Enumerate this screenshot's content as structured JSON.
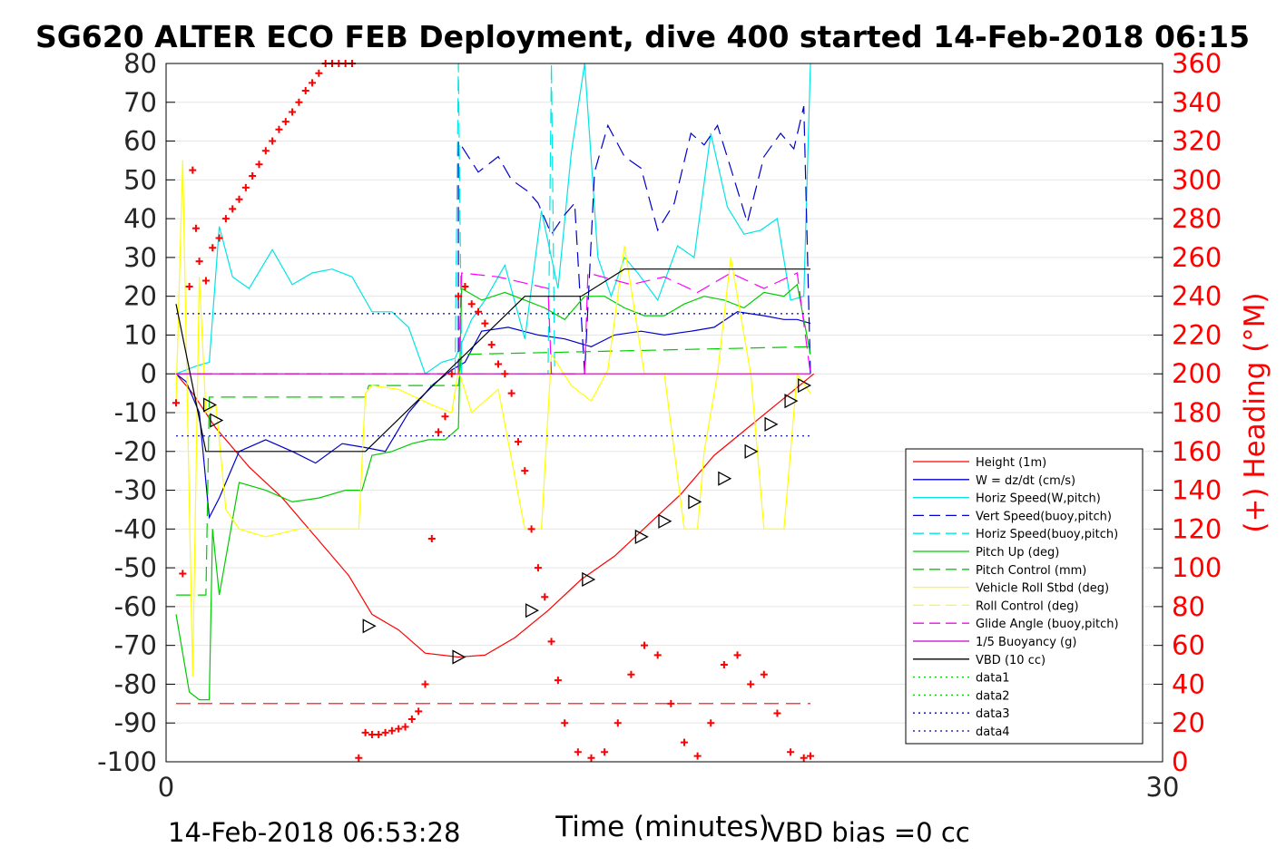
{
  "chart_data": {
    "type": "line",
    "title": "SG620 ALTER ECO FEB Deployment, dive 400 started 14-Feb-2018 06:15",
    "xlabel": "Time (minutes)",
    "ylabel": "",
    "ylabel_right": "(+) Heading (°M)",
    "xlim": [
      0,
      30
    ],
    "ylim": [
      -100,
      80
    ],
    "ylim_right": [
      0,
      360
    ],
    "x_ticks": [
      "0",
      "30"
    ],
    "y_ticks": [
      "80",
      "70",
      "60",
      "50",
      "40",
      "30",
      "20",
      "10",
      "0",
      "-10",
      "-20",
      "-30",
      "-40",
      "-50",
      "-60",
      "-70",
      "-80",
      "-90",
      "-100"
    ],
    "y_ticks_right": [
      "360",
      "340",
      "320",
      "300",
      "280",
      "260",
      "240",
      "220",
      "200",
      "180",
      "160",
      "140",
      "120",
      "100",
      "80",
      "60",
      "40",
      "20",
      "0"
    ],
    "footer_left": "14-Feb-2018 06:53:28",
    "footer_right": "VBD bias =0 cc",
    "legend": [
      {
        "label": "Height (1m)",
        "color": "#ff0000",
        "dash": "solid"
      },
      {
        "label": "W = dz/dt (cm/s)",
        "color": "#0000cc",
        "dash": "solid"
      },
      {
        "label": "Horiz Speed(W,pitch)",
        "color": "#00e5e5",
        "dash": "solid"
      },
      {
        "label": "Vert Speed(buoy,pitch)",
        "color": "#0000cc",
        "dash": "dashed"
      },
      {
        "label": "Horiz Speed(buoy,pitch)",
        "color": "#00e5e5",
        "dash": "dashed"
      },
      {
        "label": "Pitch Up (deg)",
        "color": "#00cc00",
        "dash": "solid"
      },
      {
        "label": "Pitch Control (mm)",
        "color": "#00cc00",
        "dash": "dashed"
      },
      {
        "label": "Vehicle Roll Stbd (deg)",
        "color": "#ffff00",
        "dash": "solid"
      },
      {
        "label": "Roll Control (deg)",
        "color": "#ffff00",
        "dash": "dashed"
      },
      {
        "label": "Glide Angle (buoy,pitch)",
        "color": "#ff00ff",
        "dash": "dashed"
      },
      {
        "label": "1/5 Buoyancy (g)",
        "color": "#cc00cc",
        "dash": "solid"
      },
      {
        "label": "VBD (10 cc)",
        "color": "#000000",
        "dash": "solid"
      },
      {
        "label": "data1",
        "color": "#00cc00",
        "dash": "dotted"
      },
      {
        "label": "data2",
        "color": "#00cc00",
        "dash": "dotted"
      },
      {
        "label": "data3",
        "color": "#0000aa",
        "dash": "dotted"
      },
      {
        "label": "data4",
        "color": "#0000aa",
        "dash": "dotted"
      }
    ],
    "series": [
      {
        "name": "Height (1m)",
        "color": "#ff0000",
        "dash": "solid",
        "x": [
          0.3,
          0.8,
          1.5,
          2.5,
          3.5,
          4.5,
          5.5,
          6.2,
          7.0,
          7.8,
          8.8,
          9.6,
          10.5,
          11.5,
          12.5,
          13.5,
          14.5,
          15.5,
          16.5,
          17.5,
          18.5,
          19.5
        ],
        "y": [
          0,
          -5,
          -14,
          -24,
          -32,
          -42,
          -52,
          -62,
          -66,
          -72,
          -73,
          -72.5,
          -68,
          -61,
          -53,
          -47,
          -39,
          -31,
          -21,
          -14,
          -7,
          0
        ]
      },
      {
        "name": "W = dz/dt (cm/s)",
        "color": "#0000cc",
        "dash": "solid",
        "x": [
          0.3,
          0.6,
          1.0,
          1.3,
          1.6,
          2.2,
          3.0,
          3.8,
          4.5,
          5.3,
          6.0,
          6.6,
          7.3,
          8.0,
          8.6,
          9.0,
          9.5,
          10.3,
          11.2,
          12.0,
          12.8,
          13.5,
          14.3,
          15.0,
          15.8,
          16.5,
          17.2,
          18.0,
          18.6,
          19.0,
          19.4
        ],
        "y": [
          0,
          -2,
          -10,
          -37,
          -32,
          -20,
          -17,
          -20,
          -23,
          -18,
          -19,
          -20,
          -10,
          -3,
          1,
          3,
          11,
          12,
          10,
          9,
          7,
          10,
          11,
          10,
          11,
          12,
          16,
          15,
          14,
          14,
          13
        ]
      },
      {
        "name": "Horiz Speed(W,pitch)",
        "color": "#00e5e5",
        "dash": "solid",
        "x": [
          0.3,
          0.9,
          1.3,
          1.6,
          2.0,
          2.5,
          3.2,
          3.8,
          4.4,
          5.0,
          5.6,
          6.2,
          6.8,
          7.3,
          7.8,
          8.3,
          8.7,
          9.2,
          9.6,
          10.2,
          10.8,
          11.3,
          11.8,
          12.2,
          12.6,
          13.0,
          13.4,
          13.8,
          14.2,
          14.8,
          15.4,
          15.9,
          16.4,
          16.9,
          17.4,
          17.9,
          18.4,
          18.8,
          19.2,
          19.4
        ],
        "y": [
          0,
          2,
          3,
          38,
          25,
          22,
          32,
          23,
          26,
          27,
          25,
          16,
          16,
          12,
          0,
          3,
          4,
          14,
          19,
          28,
          9,
          42,
          22,
          57,
          80,
          30,
          20,
          30,
          26,
          19,
          33,
          30,
          62,
          43,
          36,
          37,
          40,
          19,
          20,
          80
        ]
      },
      {
        "name": "Vert Speed(buoy,pitch)",
        "color": "#0000cc",
        "dash": "dashed",
        "x": [
          8.8,
          8.8,
          9.4,
          10.0,
          10.4,
          10.9,
          11.2,
          11.6,
          12.0,
          12.3,
          12.6,
          12.9,
          13.3,
          13.8,
          14.3,
          14.8,
          15.3,
          15.8,
          16.2,
          16.6,
          17.0,
          17.5,
          18.0,
          18.5,
          18.9,
          19.2,
          19.4
        ],
        "y": [
          0,
          60,
          52,
          56,
          50,
          47,
          44,
          36,
          41,
          44,
          0,
          52,
          64,
          56,
          53,
          37,
          44,
          62,
          59,
          64,
          53,
          39,
          56,
          62,
          58,
          69,
          0
        ]
      },
      {
        "name": "Horiz Speed(buoy,pitch)",
        "color": "#00e5e5",
        "dash": "dashed",
        "x": [
          8.7,
          8.8,
          8.8,
          8.9,
          11.5,
          11.6,
          11.6,
          11.7
        ],
        "y": [
          0,
          80,
          80,
          0,
          0,
          80,
          80,
          0
        ]
      },
      {
        "name": "Pitch Up (deg)",
        "color": "#00cc00",
        "dash": "solid",
        "x": [
          0.3,
          0.7,
          1.0,
          1.3,
          1.4,
          1.6,
          2.2,
          3.0,
          3.8,
          4.6,
          5.4,
          5.9,
          6.2,
          6.8,
          7.4,
          7.9,
          8.4,
          8.8,
          8.9,
          9.5,
          10.2,
          10.8,
          11.4,
          12.0,
          12.6,
          13.2,
          13.8,
          14.4,
          15.0,
          15.6,
          16.2,
          16.8,
          17.4,
          18.0,
          18.6,
          19.0,
          19.4
        ],
        "y": [
          -62,
          -82,
          -84,
          -84,
          -40,
          -57,
          -28,
          -30,
          -33,
          -32,
          -30,
          -30,
          -21,
          -20,
          -18,
          -17,
          -17,
          -14,
          22,
          19,
          21,
          19,
          17,
          14,
          20,
          20,
          17,
          15,
          15,
          18,
          20,
          19,
          17,
          21,
          20,
          23,
          5
        ]
      },
      {
        "name": "Pitch Control (mm)",
        "color": "#00cc00",
        "dash": "dashed",
        "x": [
          0.3,
          1.2,
          1.3,
          1.4,
          6.0,
          6.1,
          8.8,
          8.9,
          19.4
        ],
        "y": [
          -57,
          -57,
          -6,
          -6,
          -6,
          -3,
          -3,
          5,
          7
        ]
      },
      {
        "name": "Vehicle Roll Stbd (deg)",
        "color": "#ffff00",
        "dash": "solid",
        "x": [
          0.3,
          0.5,
          0.8,
          1.0,
          1.2,
          1.5,
          1.8,
          2.2,
          3.0,
          4.0,
          5.0,
          5.8,
          6.0,
          6.2,
          7.0,
          8.0,
          8.6,
          8.8,
          9.2,
          10.0,
          10.8,
          11.0,
          11.3,
          11.6,
          12.2,
          12.8,
          13.3,
          13.8,
          14.4,
          15.0,
          15.6,
          16.0,
          16.2,
          16.6,
          17.0,
          17.6,
          18.0,
          18.6,
          19.0,
          19.4
        ],
        "y": [
          -7,
          55,
          -78,
          25,
          -10,
          -8,
          -35,
          -40,
          -42,
          -40,
          -40,
          -40,
          -5,
          -3,
          -4,
          -8,
          -10,
          1,
          -10,
          -4,
          -40,
          -40,
          -40,
          5,
          -3,
          -7,
          1,
          33,
          0,
          0,
          -40,
          -40,
          -20,
          0,
          30,
          0,
          -40,
          -40,
          0,
          -5
        ]
      },
      {
        "name": "Roll Control (deg)",
        "color": "#ffff00",
        "dash": "dashed",
        "x": [
          0.3,
          19.4
        ],
        "y": [
          0,
          0
        ]
      },
      {
        "name": "Glide Angle (buoy,pitch)",
        "color": "#ff00ff",
        "dash": "dashed",
        "x": [
          0.3,
          8.8,
          8.9,
          10.0,
          11.0,
          11.5,
          11.6,
          12.6,
          12.7,
          14.0,
          15.0,
          16.0,
          17.0,
          18.0,
          19.0,
          19.4
        ],
        "y": [
          0,
          0,
          26,
          25,
          23,
          22,
          0,
          0,
          26,
          23,
          25,
          21,
          26,
          22,
          26,
          0
        ]
      },
      {
        "name": "1/5 Buoyancy (g)",
        "color": "#cc00cc",
        "dash": "solid",
        "x": [
          0.3,
          19.4
        ],
        "y": [
          0,
          0
        ]
      },
      {
        "name": "VBD (10 cc)",
        "color": "#000000",
        "dash": "solid",
        "x": [
          0.3,
          1.2,
          6.0,
          10.8,
          12.5,
          13.8,
          19.4
        ],
        "y": [
          18,
          -20,
          -20,
          20,
          20,
          27,
          27
        ]
      },
      {
        "name": "data1",
        "color": "#ff0000",
        "dash": "dashed",
        "x": [
          0.3,
          19.4
        ],
        "y": [
          -85,
          -85
        ]
      },
      {
        "name": "data3",
        "color": "#0000aa",
        "dash": "dotted",
        "x": [
          0.3,
          19.4
        ],
        "y": [
          15.5,
          15.5
        ]
      },
      {
        "name": "data4",
        "color": "#0000aa",
        "dash": "dotted",
        "x": [
          0.3,
          19.4
        ],
        "y": [
          -16,
          -16
        ]
      }
    ],
    "heading_points": {
      "name": "(+) Heading (°M)",
      "color": "#ff0000",
      "x": [
        0.3,
        0.5,
        0.7,
        0.8,
        0.9,
        1.0,
        1.2,
        1.4,
        1.6,
        1.8,
        2.0,
        2.2,
        2.4,
        2.6,
        2.8,
        3.0,
        3.2,
        3.4,
        3.6,
        3.8,
        4.0,
        4.2,
        4.4,
        4.6,
        4.8,
        5.0,
        5.2,
        5.4,
        5.6,
        5.8,
        6.0,
        6.2,
        6.4,
        6.6,
        6.8,
        7.0,
        7.2,
        7.4,
        7.6,
        7.8,
        8.0,
        8.2,
        8.4,
        8.6,
        8.8,
        9.0,
        9.2,
        9.4,
        9.6,
        9.8,
        10.0,
        10.2,
        10.4,
        10.6,
        10.8,
        11.0,
        11.2,
        11.4,
        11.6,
        11.8,
        12.0,
        12.4,
        12.8,
        13.2,
        13.6,
        14.0,
        14.4,
        14.8,
        15.2,
        15.6,
        16.0,
        16.4,
        16.8,
        17.2,
        17.6,
        18.0,
        18.4,
        18.8,
        19.2,
        19.4
      ],
      "y": [
        185,
        97,
        245,
        305,
        275,
        258,
        248,
        265,
        270,
        280,
        285,
        290,
        296,
        302,
        308,
        315,
        320,
        326,
        330,
        335,
        340,
        346,
        350,
        355,
        360,
        360,
        361,
        361,
        361,
        2,
        15,
        14,
        14,
        15,
        16,
        17,
        18,
        22,
        26,
        40,
        115,
        170,
        178,
        200,
        240,
        245,
        236,
        232,
        226,
        215,
        205,
        200,
        190,
        165,
        150,
        120,
        100,
        85,
        62,
        42,
        20,
        5,
        2,
        5,
        20,
        45,
        60,
        55,
        30,
        10,
        3,
        20,
        50,
        55,
        40,
        45,
        25,
        5,
        2,
        3
      ]
    },
    "markers": {
      "name": "triangles",
      "x": [
        1.3,
        1.5,
        6.1,
        8.8,
        11.0,
        12.7,
        14.3,
        15.0,
        15.9,
        16.8,
        17.6,
        18.2,
        18.8,
        19.2
      ],
      "y": [
        -8,
        -12,
        -65,
        -73,
        -61,
        -53,
        -42,
        -38,
        -33,
        -27,
        -20,
        -13,
        -7,
        -3
      ]
    }
  }
}
